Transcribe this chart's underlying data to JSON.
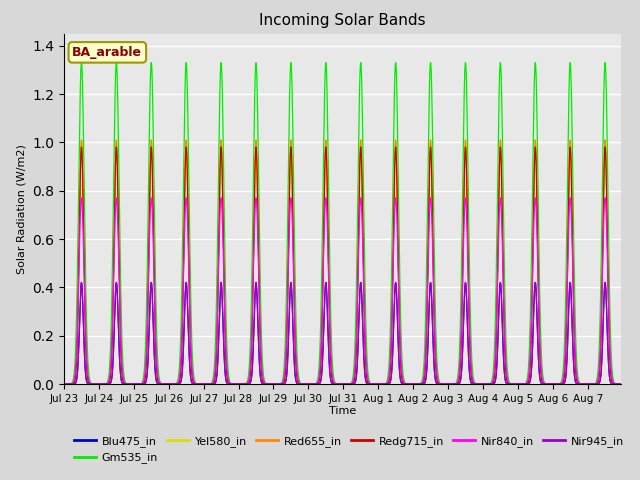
{
  "title": "Incoming Solar Bands",
  "xlabel": "Time",
  "ylabel": "Solar Radiation (W/m2)",
  "annotation": "BA_arable",
  "ylim": [
    0.0,
    1.45
  ],
  "num_days": 16,
  "lines": [
    {
      "label": "Blu475_in",
      "color": "#0000cc",
      "peak": 0.42,
      "sigma": 0.055
    },
    {
      "label": "Gm535_in",
      "color": "#00ee00",
      "peak": 1.33,
      "sigma": 0.08
    },
    {
      "label": "Yel580_in",
      "color": "#dddd00",
      "peak": 1.01,
      "sigma": 0.065
    },
    {
      "label": "Red655_in",
      "color": "#ff8800",
      "peak": 1.01,
      "sigma": 0.065
    },
    {
      "label": "Redg715_in",
      "color": "#cc0000",
      "peak": 0.98,
      "sigma": 0.065
    },
    {
      "label": "Nir840_in",
      "color": "#ff00ff",
      "peak": 0.77,
      "sigma": 0.075
    },
    {
      "label": "Nir945_in",
      "color": "#9900cc",
      "peak": 0.42,
      "sigma": 0.055
    }
  ],
  "xtick_labels": [
    "Jul 23",
    "Jul 24",
    "Jul 25",
    "Jul 26",
    "Jul 27",
    "Jul 28",
    "Jul 29",
    "Jul 30",
    "Jul 31",
    "Aug 1",
    "Aug 2",
    "Aug 3",
    "Aug 4",
    "Aug 5",
    "Aug 6",
    "Aug 7"
  ],
  "background_color": "#d8d8d8",
  "plot_bg_color": "#e8e8e8",
  "grid_color": "#ffffff",
  "legend_order": [
    0,
    1,
    2,
    3,
    4,
    5,
    6
  ]
}
